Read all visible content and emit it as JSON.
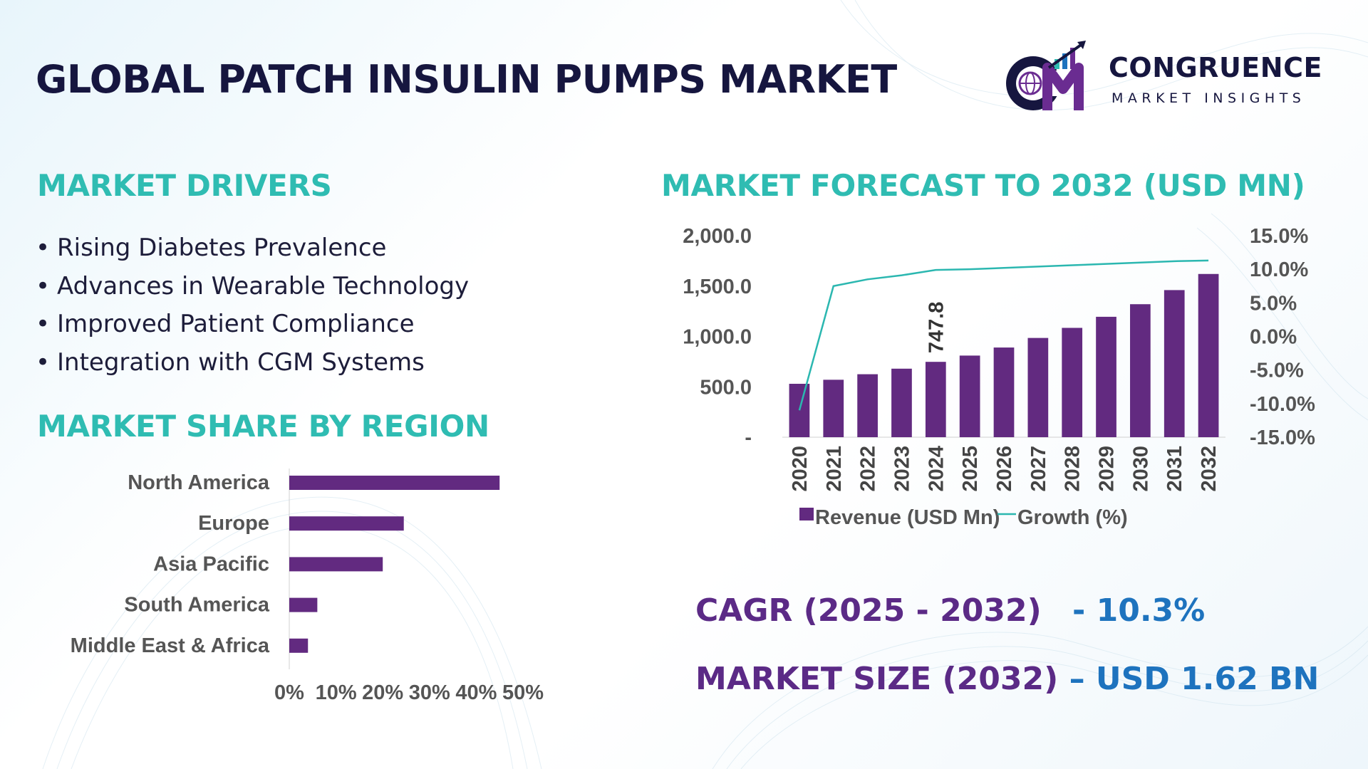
{
  "title": "GLOBAL PATCH INSULIN PUMPS MARKET",
  "brand": {
    "name": "CONGRUENCE",
    "tagline": "MARKET INSIGHTS",
    "monogram": "CM"
  },
  "drivers": {
    "heading": "MARKET DRIVERS",
    "items": [
      "Rising Diabetes Prevalence",
      "Advances in Wearable Technology",
      "Improved Patient Compliance",
      "Integration with CGM Systems"
    ]
  },
  "region_share": {
    "heading": "MARKET SHARE BY REGION"
  },
  "forecast": {
    "heading": "MARKET FORECAST TO 2032 (USD MN)"
  },
  "stats": {
    "cagr_label": "CAGR (2025 - 2032)",
    "cagr_value": "- 10.3%",
    "size_label": "MARKET SIZE (2032)",
    "size_value": "– USD 1.62 BN"
  },
  "colors": {
    "title": "#16163f",
    "heading": "#2fbcb2",
    "bar": "#622a80",
    "line": "#2bb7b0",
    "stat_label": "#5b2a86",
    "stat_value": "#1e73be"
  },
  "icons": [
    "globe-icon",
    "growth-arrow-icon"
  ],
  "chart_data": [
    {
      "type": "bar",
      "orientation": "horizontal",
      "categories": [
        "North America",
        "Europe",
        "Asia Pacific",
        "South America",
        "Middle East & Africa"
      ],
      "values": [
        45,
        24.5,
        20,
        6,
        4
      ],
      "xlim": [
        0,
        50
      ],
      "xticks": [
        "0%",
        "10%",
        "20%",
        "30%",
        "40%",
        "50%"
      ],
      "grid": false
    },
    {
      "type": "bar",
      "categories": [
        "2020",
        "2021",
        "2022",
        "2023",
        "2024",
        "2025",
        "2026",
        "2027",
        "2028",
        "2029",
        "2030",
        "2031",
        "2032"
      ],
      "series": [
        {
          "name": "Revenue (USD Mn)",
          "type": "bar",
          "axis": "left",
          "values": [
            530,
            570,
            625,
            680,
            747.8,
            810,
            890,
            985,
            1085,
            1195,
            1320,
            1460,
            1620
          ]
        },
        {
          "name": "Growth (%)",
          "type": "line",
          "axis": "right",
          "values": [
            -11.0,
            7.5,
            8.5,
            9.1,
            9.9,
            10.0,
            10.2,
            10.4,
            10.6,
            10.8,
            11.0,
            11.2,
            11.3
          ]
        }
      ],
      "data_labels": [
        {
          "category": "2024",
          "text": "747.8"
        }
      ],
      "ylim": [
        0,
        2000
      ],
      "yticks": [
        "-",
        "500.0",
        "1,000.0",
        "1,500.0",
        "2,000.0"
      ],
      "y2lim": [
        -15,
        15
      ],
      "y2ticks": [
        "-15.0%",
        "-10.0%",
        "-5.0%",
        "0.0%",
        "5.0%",
        "10.0%",
        "15.0%"
      ],
      "legend": "bottom",
      "grid": false
    }
  ]
}
